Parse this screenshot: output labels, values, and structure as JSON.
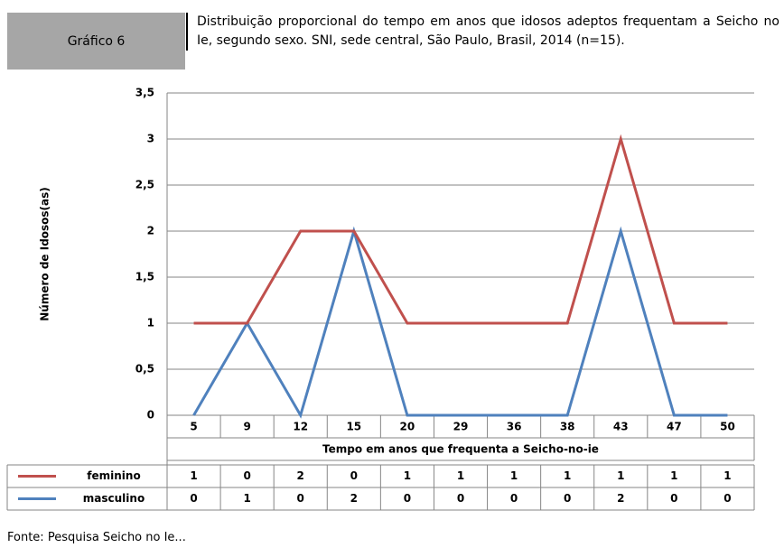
{
  "chart_data": {
    "type": "line",
    "stacked": true,
    "label": "Gráfico 6",
    "title": "Distribuição proporcional do tempo em anos que idosos adeptos frequentam a Seicho no Ie, segundo sexo. SNI, sede central, São Paulo, Brasil, 2014 (n=15).",
    "source": "Fonte: Pesquisa Seicho no Ie...",
    "xlabel": "Tempo em anos que frequenta a Seicho-no-ie",
    "ylabel": "Número de Idosos(as)",
    "categories": [
      "5",
      "9",
      "12",
      "15",
      "20",
      "29",
      "36",
      "38",
      "43",
      "47",
      "50"
    ],
    "series": [
      {
        "name": "feminino",
        "color": "#c0504d",
        "values": [
          1,
          0,
          2,
          0,
          1,
          1,
          1,
          1,
          1,
          1,
          1
        ]
      },
      {
        "name": "masculino",
        "color": "#4f81bd",
        "values": [
          0,
          1,
          0,
          2,
          0,
          0,
          0,
          0,
          2,
          0,
          0
        ]
      }
    ],
    "ylim": [
      0,
      3.5
    ],
    "yticks": [
      0,
      {
        "value": 0.5,
        "label": "0,5"
      },
      1,
      {
        "value": 1.5,
        "label": "1,5"
      },
      2,
      {
        "value": 2.5,
        "label": "2,5"
      },
      3,
      {
        "value": 3.5,
        "label": "3,5"
      }
    ],
    "grid": true
  }
}
